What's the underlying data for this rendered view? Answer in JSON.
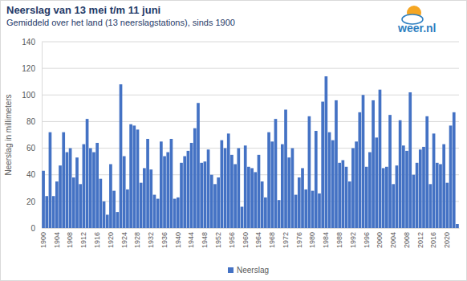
{
  "chart_data": {
    "type": "bar",
    "title": "Neerslag van 13 mei t/m 11 juni",
    "subtitle": "Gemiddeld over het land (13 neerslagstations), sinds 1900",
    "y_label": "Neerslag in millimeters",
    "annotations": [
      "weer.nl"
    ],
    "categories": [
      "1900",
      null,
      null,
      null,
      "1904",
      null,
      null,
      null,
      "1908",
      null,
      null,
      null,
      "1912",
      null,
      null,
      null,
      "1916",
      null,
      null,
      null,
      "1920",
      null,
      null,
      null,
      "1924",
      null,
      null,
      null,
      "1928",
      null,
      null,
      null,
      "1932",
      null,
      null,
      null,
      "1936",
      null,
      null,
      null,
      "1940",
      null,
      null,
      null,
      "1944",
      null,
      null,
      null,
      "1948",
      null,
      null,
      null,
      "1952",
      null,
      null,
      null,
      "1956",
      null,
      null,
      null,
      "1960",
      null,
      null,
      null,
      "1964",
      null,
      null,
      null,
      "1968",
      null,
      null,
      null,
      "1972",
      null,
      null,
      null,
      "1976",
      null,
      null,
      null,
      "1980",
      null,
      null,
      null,
      "1984",
      null,
      null,
      null,
      "1988",
      null,
      null,
      null,
      "1992",
      null,
      null,
      null,
      "1996",
      null,
      null,
      null,
      "2000",
      null,
      null,
      null,
      "2004",
      null,
      null,
      null,
      "2008",
      null,
      null,
      null,
      "2012",
      null,
      null,
      null,
      "2016",
      null,
      null,
      null,
      "2020",
      null,
      null,
      null
    ],
    "series": [
      {
        "name": "Neerslag",
        "color": "#4472c4",
        "values": [
          43,
          24,
          72,
          24,
          35,
          47,
          72,
          57,
          60,
          38,
          53,
          33,
          63,
          82,
          60,
          57,
          64,
          37,
          20,
          10,
          48,
          28,
          12,
          108,
          54,
          29,
          78,
          77,
          74,
          34,
          45,
          67,
          44,
          25,
          22,
          65,
          54,
          57,
          67,
          22,
          23,
          49,
          54,
          58,
          64,
          75,
          94,
          49,
          50,
          59,
          40,
          33,
          38,
          66,
          60,
          71,
          55,
          48,
          60,
          16,
          62,
          46,
          45,
          42,
          55,
          35,
          23,
          72,
          65,
          82,
          21,
          63,
          89,
          53,
          60,
          25,
          38,
          45,
          29,
          84,
          28,
          73,
          26,
          95,
          114,
          72,
          66,
          96,
          49,
          51,
          46,
          35,
          60,
          65,
          87,
          100,
          46,
          57,
          96,
          68,
          104,
          45,
          46,
          85,
          33,
          47,
          81,
          62,
          58,
          102,
          40,
          49,
          59,
          61,
          84,
          33,
          71,
          49,
          48,
          63,
          34,
          77,
          87,
          3
        ]
      }
    ],
    "ylim": [
      0,
      140
    ],
    "yticks": [
      0,
      20,
      40,
      60,
      80,
      100,
      120,
      140
    ],
    "grid": true,
    "legend": "bottom"
  }
}
